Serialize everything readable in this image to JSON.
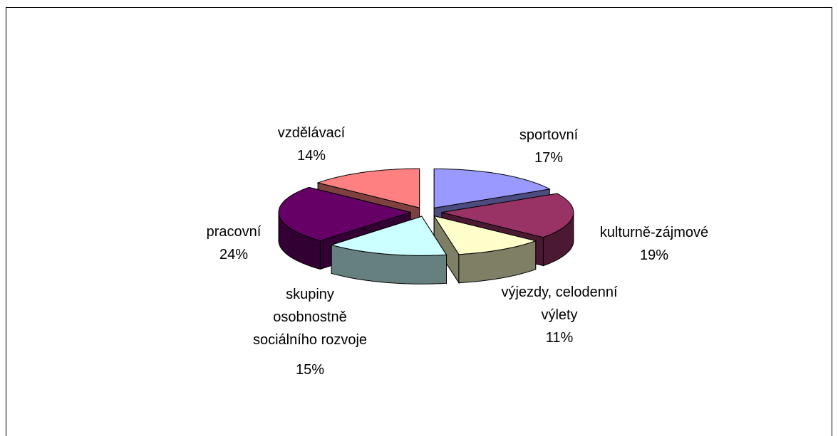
{
  "chart_data": {
    "type": "pie3d",
    "categories": [
      "sportovní",
      "kulturně-zájmové",
      "výjezdy, celodenní výlety",
      "skupiny osobnostně sociálního rozvoje",
      "pracovní",
      "vzdělávací"
    ],
    "values": [
      17,
      19,
      11,
      15,
      24,
      14
    ],
    "value_labels": [
      "17%",
      "19%",
      "11%",
      "15%",
      "24%",
      "14%"
    ],
    "colors": [
      "#9999ff",
      "#993366",
      "#ffffcc",
      "#ccffff",
      "#660066",
      "#ff8080"
    ]
  }
}
